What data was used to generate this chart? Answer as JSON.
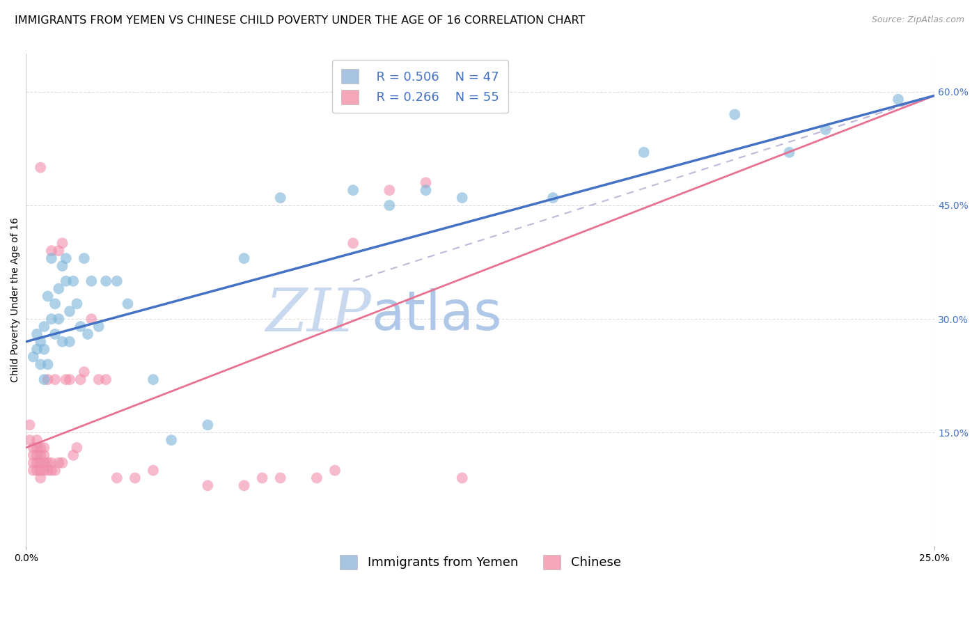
{
  "title": "IMMIGRANTS FROM YEMEN VS CHINESE CHILD POVERTY UNDER THE AGE OF 16 CORRELATION CHART",
  "source": "Source: ZipAtlas.com",
  "ylabel": "Child Poverty Under the Age of 16",
  "ytick_labels": [
    "15.0%",
    "30.0%",
    "45.0%",
    "60.0%"
  ],
  "ytick_values": [
    0.15,
    0.3,
    0.45,
    0.6
  ],
  "xlim": [
    0.0,
    0.25
  ],
  "ylim": [
    0.0,
    0.65
  ],
  "legend_entries": [
    {
      "label": "Immigrants from Yemen",
      "color": "#a8c4e0",
      "R": "0.506",
      "N": "47"
    },
    {
      "label": "Chinese",
      "color": "#f4a7b9",
      "R": "0.266",
      "N": "55"
    }
  ],
  "blue_scatter_x": [
    0.002,
    0.003,
    0.003,
    0.004,
    0.004,
    0.005,
    0.005,
    0.005,
    0.006,
    0.006,
    0.007,
    0.007,
    0.008,
    0.008,
    0.009,
    0.009,
    0.01,
    0.01,
    0.011,
    0.011,
    0.012,
    0.012,
    0.013,
    0.014,
    0.015,
    0.016,
    0.017,
    0.018,
    0.02,
    0.022,
    0.025,
    0.028,
    0.035,
    0.04,
    0.05,
    0.06,
    0.07,
    0.09,
    0.1,
    0.11,
    0.12,
    0.145,
    0.17,
    0.195,
    0.21,
    0.22,
    0.24
  ],
  "blue_scatter_y": [
    0.25,
    0.26,
    0.28,
    0.24,
    0.27,
    0.22,
    0.26,
    0.29,
    0.24,
    0.33,
    0.3,
    0.38,
    0.32,
    0.28,
    0.3,
    0.34,
    0.37,
    0.27,
    0.35,
    0.38,
    0.31,
    0.27,
    0.35,
    0.32,
    0.29,
    0.38,
    0.28,
    0.35,
    0.29,
    0.35,
    0.35,
    0.32,
    0.22,
    0.14,
    0.16,
    0.38,
    0.46,
    0.47,
    0.45,
    0.47,
    0.46,
    0.46,
    0.52,
    0.57,
    0.52,
    0.55,
    0.59
  ],
  "pink_scatter_x": [
    0.001,
    0.001,
    0.002,
    0.002,
    0.002,
    0.002,
    0.003,
    0.003,
    0.003,
    0.003,
    0.003,
    0.004,
    0.004,
    0.004,
    0.004,
    0.004,
    0.004,
    0.005,
    0.005,
    0.005,
    0.005,
    0.006,
    0.006,
    0.006,
    0.007,
    0.007,
    0.007,
    0.008,
    0.008,
    0.009,
    0.009,
    0.01,
    0.01,
    0.011,
    0.012,
    0.013,
    0.014,
    0.015,
    0.016,
    0.018,
    0.02,
    0.022,
    0.025,
    0.03,
    0.035,
    0.05,
    0.06,
    0.065,
    0.07,
    0.08,
    0.085,
    0.09,
    0.1,
    0.11,
    0.12
  ],
  "pink_scatter_y": [
    0.14,
    0.16,
    0.1,
    0.11,
    0.12,
    0.13,
    0.1,
    0.11,
    0.12,
    0.13,
    0.14,
    0.09,
    0.1,
    0.11,
    0.12,
    0.13,
    0.5,
    0.1,
    0.11,
    0.12,
    0.13,
    0.1,
    0.11,
    0.22,
    0.1,
    0.11,
    0.39,
    0.1,
    0.22,
    0.11,
    0.39,
    0.11,
    0.4,
    0.22,
    0.22,
    0.12,
    0.13,
    0.22,
    0.23,
    0.3,
    0.22,
    0.22,
    0.09,
    0.09,
    0.1,
    0.08,
    0.08,
    0.09,
    0.09,
    0.09,
    0.1,
    0.4,
    0.47,
    0.48,
    0.09
  ],
  "blue_line_x": [
    0.0,
    0.25
  ],
  "blue_line_y": [
    0.27,
    0.595
  ],
  "pink_line_x": [
    0.0,
    0.25
  ],
  "pink_line_y": [
    0.13,
    0.595
  ],
  "pink_dashed_line_x": [
    0.0,
    0.25
  ],
  "pink_dashed_line_y": [
    0.13,
    0.595
  ],
  "dot_color_blue": "#7ab3d9",
  "dot_color_pink": "#f08caa",
  "line_color_blue": "#4472c4",
  "line_color_pink": "#e87090",
  "grid_color": "#dddddd",
  "background_color": "#ffffff",
  "title_fontsize": 11.5,
  "axis_label_fontsize": 10,
  "tick_fontsize": 10,
  "legend_fontsize": 13,
  "watermark_zip_color": "#c8d8ee",
  "watermark_atlas_color": "#b0c8e8"
}
